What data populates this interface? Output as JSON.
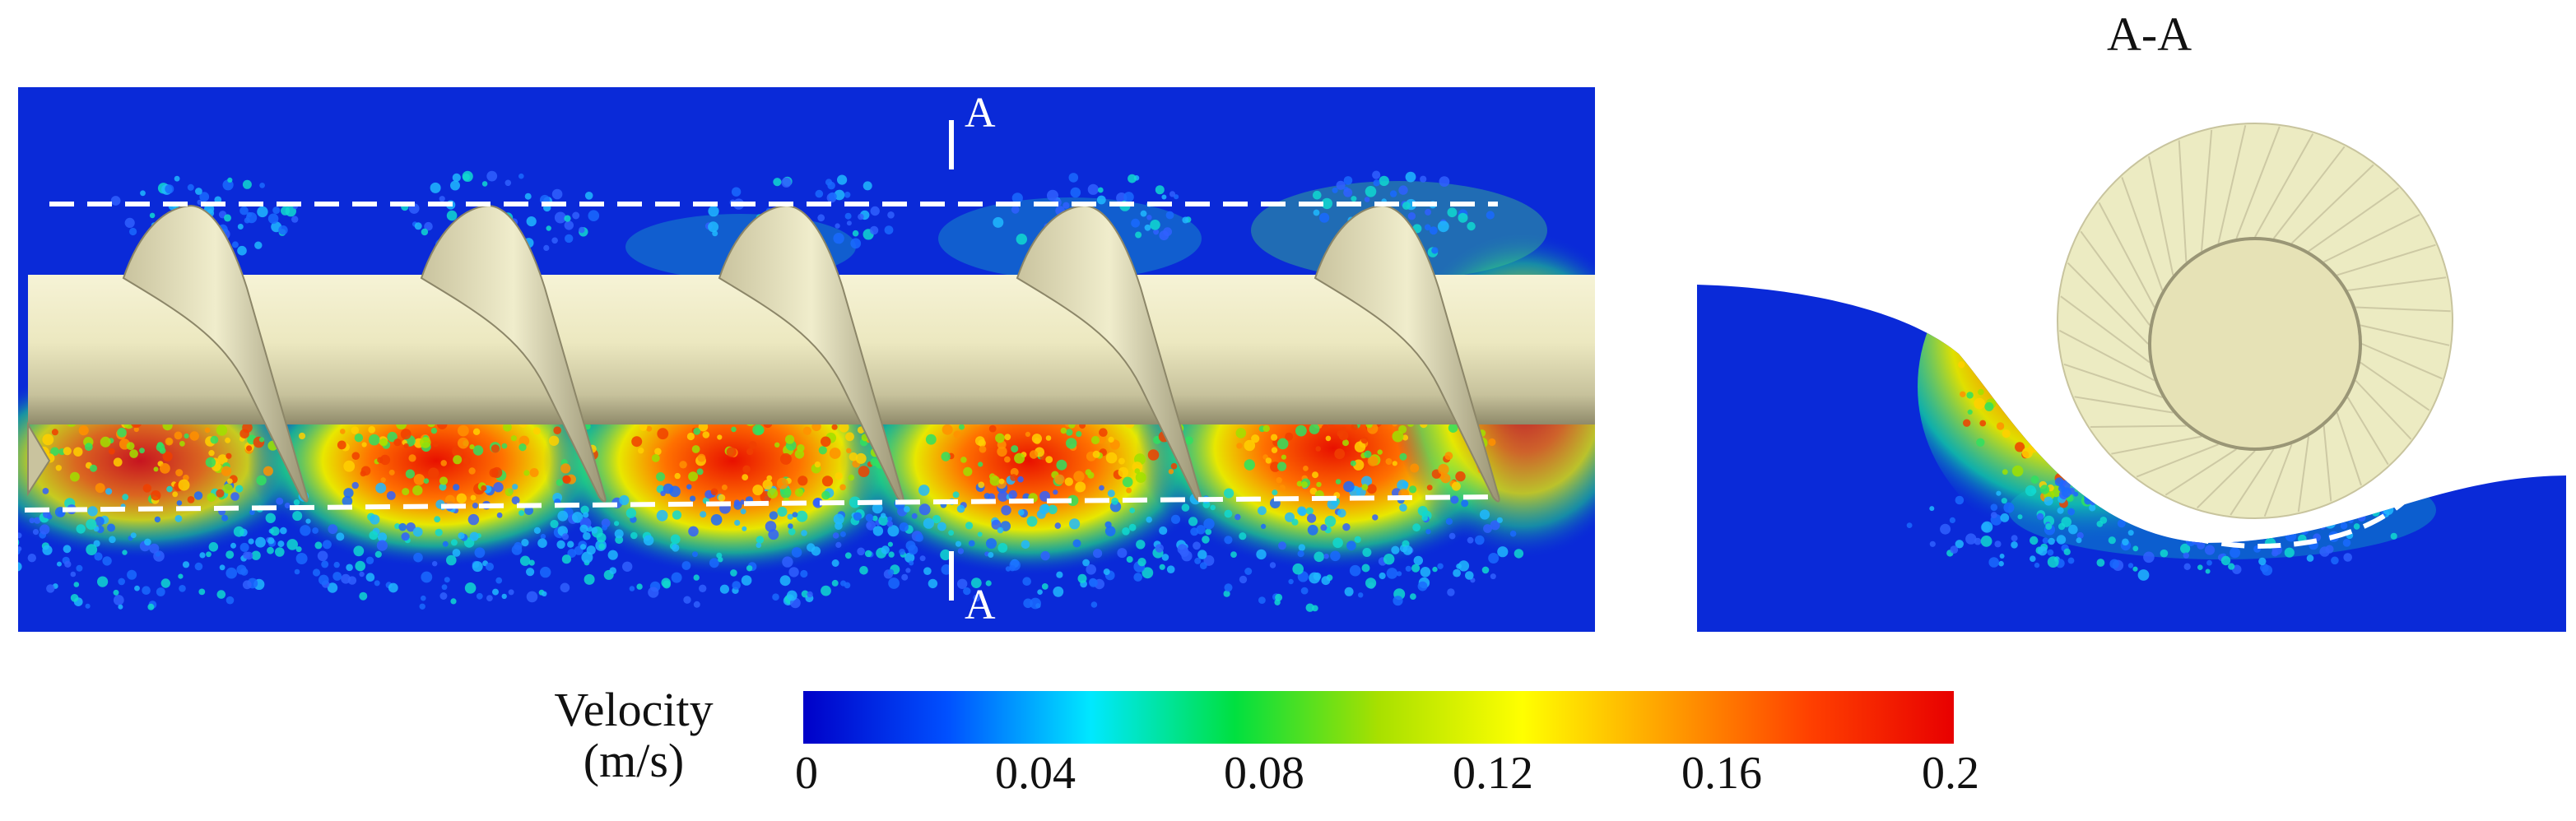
{
  "section_title": "A-A",
  "section_marker_top": "A",
  "section_marker_bottom": "A",
  "colorbar": {
    "title_line1": "Velocity",
    "title_line2": "(m/s)",
    "min": 0,
    "max": 0.2,
    "ticks": [
      "0",
      "0.04",
      "0.08",
      "0.12",
      "0.16",
      "0.2"
    ],
    "colors": [
      "#0000c8",
      "#0050ff",
      "#00e8ff",
      "#00e040",
      "#a8e000",
      "#ffff00",
      "#ffa000",
      "#ff4000",
      "#e80000"
    ]
  },
  "colors": {
    "background_particles": "#0a2ad8",
    "screw": "#efedc4",
    "screw_shade": "#a8a27e",
    "dashed_guides": "#ffffff"
  }
}
